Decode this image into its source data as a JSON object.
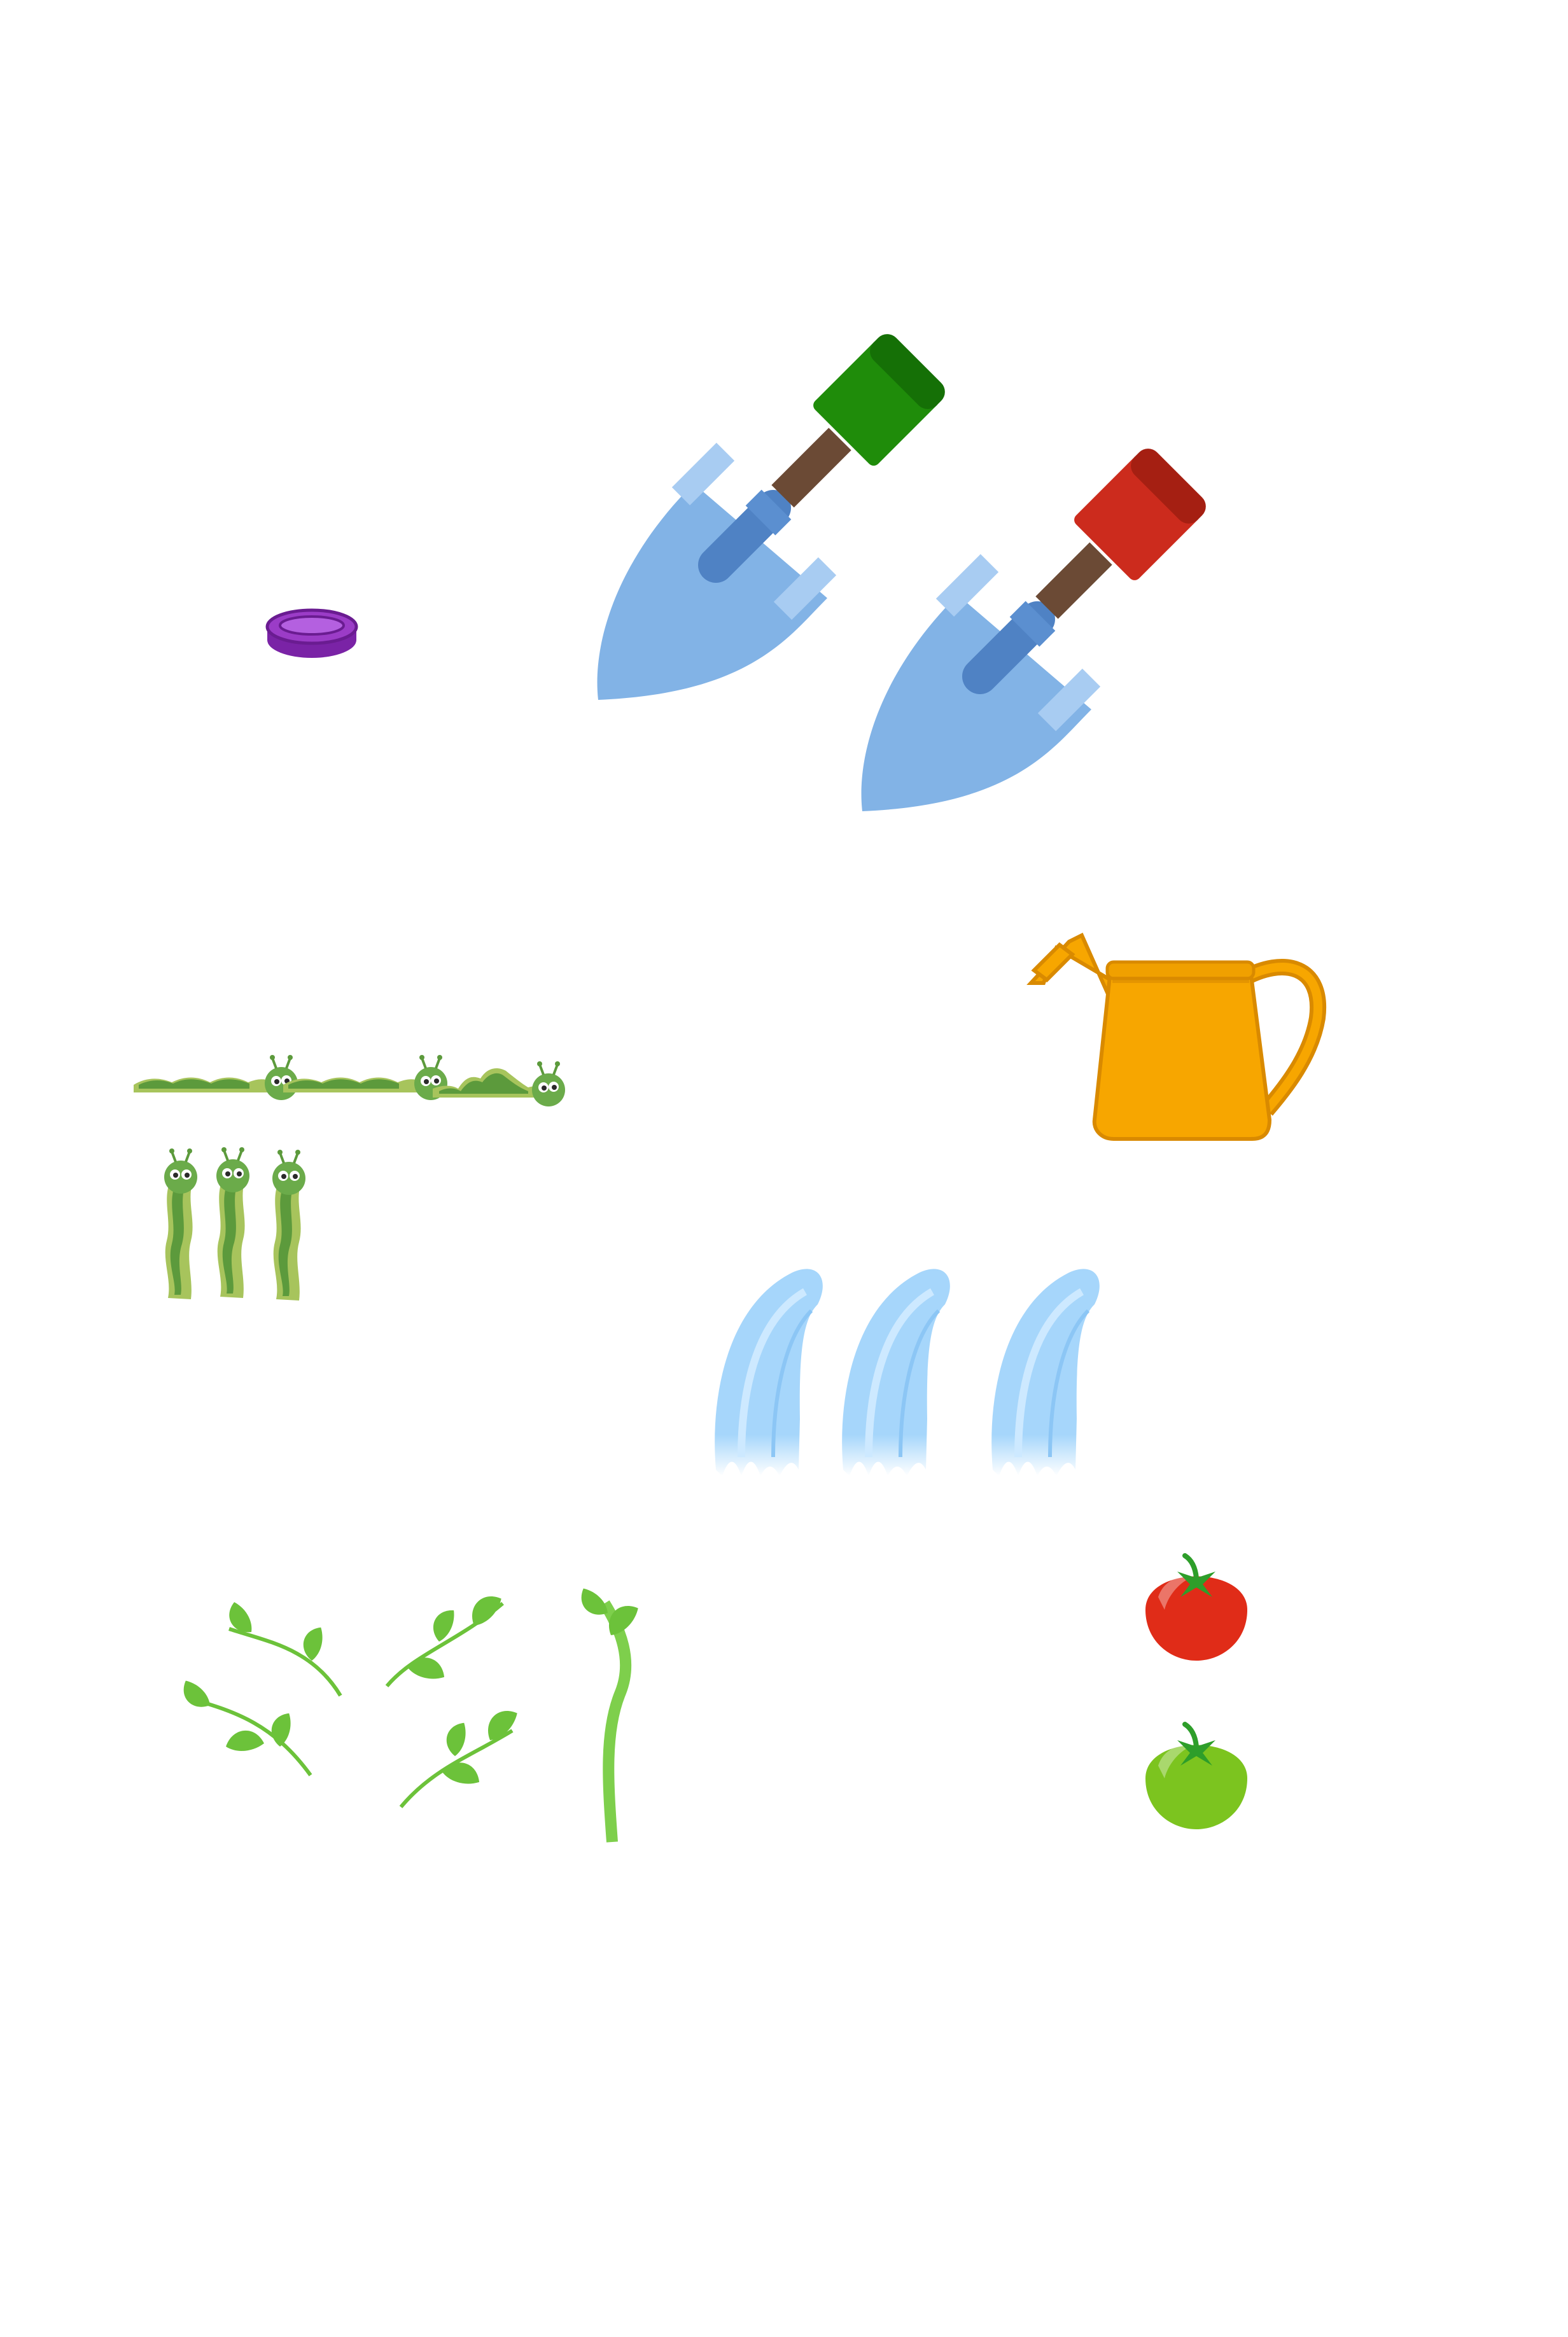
{
  "sheet": {
    "background": "#ffffff",
    "sprites": {
      "coin": {
        "icon": "purple-coin-icon",
        "color": "#9b3cc7"
      },
      "trowels": [
        {
          "icon": "garden-trowel-icon",
          "handle_color": "#1f8c0a",
          "blade_color": "#82b3e6"
        },
        {
          "icon": "garden-trowel-icon",
          "handle_color": "#cc2b1d",
          "blade_color": "#82b3e6"
        }
      ],
      "watering_can": {
        "icon": "watering-can-icon",
        "color": "#f7a600"
      },
      "caterpillars": {
        "icon": "caterpillar-icon",
        "horizontal_frames": 3,
        "vertical_frames": 3,
        "colors": {
          "body_light": "#a7c45c",
          "body_dark": "#5c9a3c",
          "head": "#6bab4a"
        }
      },
      "water_splashes": {
        "icon": "water-splash-icon",
        "frames": 3,
        "color": "#a6d6fb"
      },
      "vines": {
        "icon": "vine-leaf-icon",
        "pieces": 5,
        "color": "#6cc23a"
      },
      "tomatoes": [
        {
          "icon": "ripe-tomato-icon",
          "color": "#e02c18"
        },
        {
          "icon": "unripe-tomato-icon",
          "color": "#7cc41f"
        }
      ]
    }
  }
}
